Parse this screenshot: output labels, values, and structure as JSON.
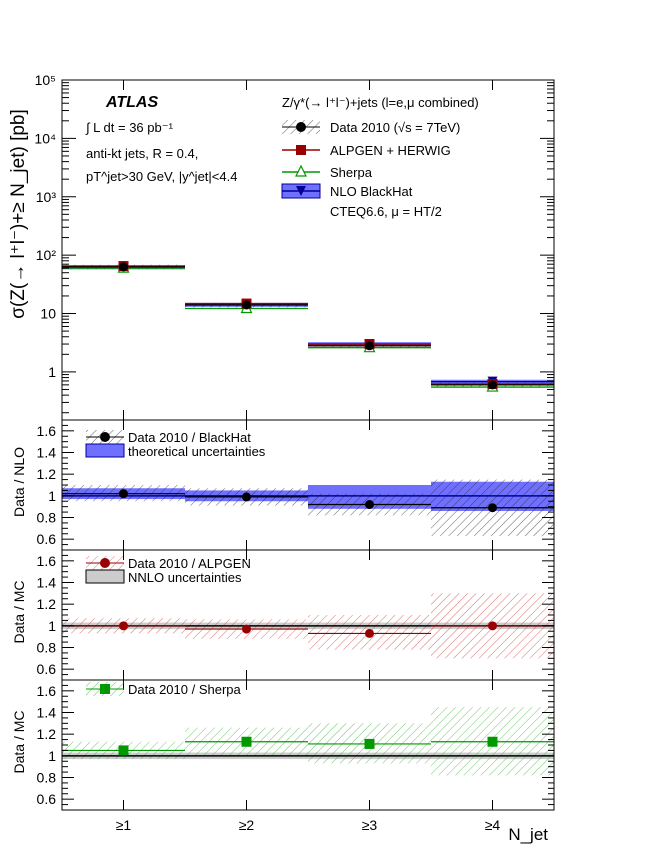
{
  "chart_data": [
    {
      "type": "scatter",
      "panel": "cross-section",
      "ylabel": "σ(Z(→ l⁺l⁻)+≥ N_jet) [pb]",
      "yscale": "log",
      "ylim": [
        0.15,
        100000
      ],
      "categories": [
        "≥1",
        "≥2",
        "≥3",
        "≥4"
      ],
      "ytick_labels": [
        "1",
        "10",
        "10²",
        "10³",
        "10⁴",
        "10⁵"
      ],
      "legend_title": "Z/γ*(→ l⁺l⁻)+jets (l=e,μ combined)",
      "series": [
        {
          "name": "Data 2010 (√s = 7TeV)",
          "marker": "circle",
          "color": "#000000",
          "values": [
            63,
            14,
            2.8,
            0.6
          ]
        },
        {
          "name": "ALPGEN + HERWIG",
          "marker": "square",
          "color": "#990000",
          "values": [
            65,
            14.8,
            3.0,
            0.62
          ]
        },
        {
          "name": "Sherpa",
          "marker": "open-triangle",
          "color": "#009900",
          "values": [
            60,
            12.2,
            2.6,
            0.55
          ]
        },
        {
          "name": "NLO BlackHat",
          "marker": "down-triangle",
          "color": "#000099",
          "band_color": "#7070ff",
          "values": [
            62,
            14.1,
            3.0,
            0.68
          ]
        }
      ],
      "annotations": [
        "ATLAS",
        "∫ L dt = 36 pb⁻¹",
        "anti-kt jets, R = 0.4,",
        "pT^jet>30 GeV, |y^jet|<4.4",
        "CTEQ6.6, μ = HT/2"
      ]
    },
    {
      "type": "scatter",
      "panel": "data-over-nlo",
      "ylabel": "Data / NLO",
      "ylim": [
        0.5,
        1.7
      ],
      "ytick_labels": [
        "0.6",
        "0.8",
        "1",
        "1.2",
        "1.4",
        "1.6"
      ],
      "categories": [
        "≥1",
        "≥2",
        "≥3",
        "≥4"
      ],
      "series": [
        {
          "name": "Data 2010 / BlackHat",
          "values": [
            1.02,
            0.99,
            0.92,
            0.89
          ],
          "data_band": [
            [
              0.95,
              1.1
            ],
            [
              0.91,
              1.07
            ],
            [
              0.82,
              1.02
            ],
            [
              0.63,
              1.15
            ]
          ]
        }
      ],
      "band": {
        "name": "theoretical uncertainties",
        "values": [
          [
            0.97,
            1.07
          ],
          [
            0.95,
            1.05
          ],
          [
            0.88,
            1.1
          ],
          [
            0.86,
            1.13
          ]
        ]
      }
    },
    {
      "type": "scatter",
      "panel": "data-over-alpgen",
      "ylabel": "Data / MC",
      "ylim": [
        0.5,
        1.7
      ],
      "ytick_labels": [
        "0.6",
        "0.8",
        "1",
        "1.2",
        "1.4",
        "1.6"
      ],
      "categories": [
        "≥1",
        "≥2",
        "≥3",
        "≥4"
      ],
      "series": [
        {
          "name": "Data 2010 / ALPGEN",
          "values": [
            1.0,
            0.97,
            0.93,
            1.0
          ],
          "data_band": [
            [
              0.93,
              1.07
            ],
            [
              0.88,
              1.06
            ],
            [
              0.78,
              1.1
            ],
            [
              0.7,
              1.3
            ]
          ]
        }
      ],
      "band": {
        "name": "NNLO uncertainties",
        "values": [
          [
            0.97,
            1.03
          ],
          [
            0.97,
            1.03
          ],
          [
            0.97,
            1.03
          ],
          [
            0.97,
            1.03
          ]
        ]
      }
    },
    {
      "type": "scatter",
      "panel": "data-over-sherpa",
      "ylabel": "Data / MC",
      "xlabel": "N_jet",
      "ylim": [
        0.5,
        1.7
      ],
      "ytick_labels": [
        "0.6",
        "0.8",
        "1",
        "1.2",
        "1.4",
        "1.6"
      ],
      "categories": [
        "≥1",
        "≥2",
        "≥3",
        "≥4"
      ],
      "series": [
        {
          "name": "Data 2010 / Sherpa",
          "values": [
            1.05,
            1.13,
            1.11,
            1.13
          ],
          "data_band": [
            [
              0.97,
              1.13
            ],
            [
              1.0,
              1.26
            ],
            [
              0.93,
              1.3
            ],
            [
              0.82,
              1.45
            ]
          ]
        }
      ],
      "band": {
        "values": [
          [
            0.97,
            1.03
          ],
          [
            0.97,
            1.03
          ],
          [
            0.97,
            1.03
          ],
          [
            0.97,
            1.03
          ]
        ]
      }
    }
  ]
}
